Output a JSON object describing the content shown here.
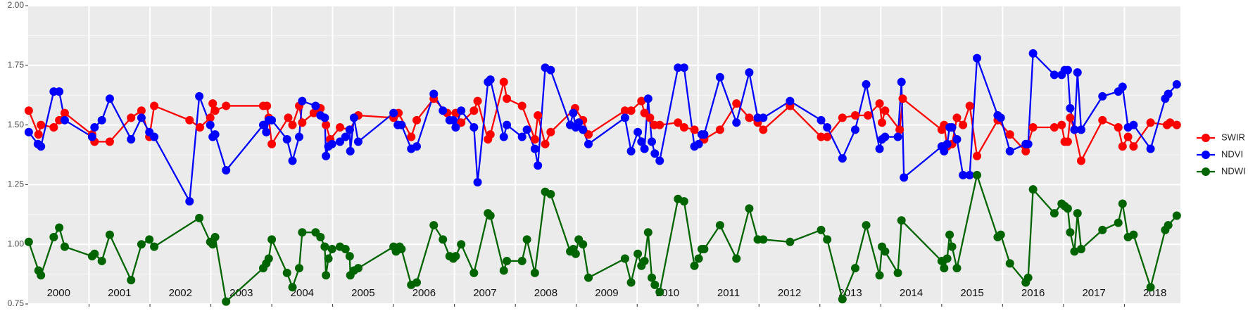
{
  "chart_data": {
    "type": "line",
    "xlim": [
      2000,
      2018.92
    ],
    "xticks": [
      2001,
      2002,
      2003,
      2004,
      2005,
      2006,
      2007,
      2008,
      2009,
      2010,
      2011,
      2012,
      2013,
      2014,
      2015,
      2016,
      2017,
      2018
    ],
    "ylim": [
      0.75,
      2.0
    ],
    "yticks": [
      {
        "value": 0.75,
        "label": "0.75"
      },
      {
        "value": 1.0,
        "label": "1.00"
      },
      {
        "value": 1.25,
        "label": "1.25"
      },
      {
        "value": 1.5,
        "label": "1.50"
      },
      {
        "value": 1.75,
        "label": "1.75"
      },
      {
        "value": 2.0,
        "label": "2.00"
      }
    ],
    "y_minor_ticks": [
      0.875,
      1.125,
      1.375,
      1.625,
      1.875
    ],
    "grid": true,
    "legend": "right",
    "year_labels": [
      {
        "text": "2000",
        "x": 2000.5
      },
      {
        "text": "2001",
        "x": 2001.5
      },
      {
        "text": "2002",
        "x": 2002.5
      },
      {
        "text": "2003",
        "x": 2003.5
      },
      {
        "text": "2004",
        "x": 2004.5
      },
      {
        "text": "2005",
        "x": 2005.5
      },
      {
        "text": "2006",
        "x": 2006.5
      },
      {
        "text": "2007",
        "x": 2007.5
      },
      {
        "text": "2008",
        "x": 2008.5
      },
      {
        "text": "2009",
        "x": 2009.5
      },
      {
        "text": "2010",
        "x": 2010.5
      },
      {
        "text": "2011",
        "x": 2011.5
      },
      {
        "text": "2012",
        "x": 2012.5
      },
      {
        "text": "2013",
        "x": 2013.5
      },
      {
        "text": "2014",
        "x": 2014.5
      },
      {
        "text": "2015",
        "x": 2015.5
      },
      {
        "text": "2016",
        "x": 2016.5
      },
      {
        "text": "2017",
        "x": 2017.5
      },
      {
        "text": "2018",
        "x": 2018.5
      }
    ],
    "series": [
      {
        "name": "SWIR",
        "color": "#ff0000",
        "x": [
          2000.01,
          2000.17,
          2000.21,
          2000.42,
          2000.51,
          2000.6,
          2001.05,
          2001.09,
          2001.34,
          2001.69,
          2001.86,
          2001.99,
          2002.07,
          2002.65,
          2002.82,
          2002.99,
          2003.03,
          2003.07,
          2003.25,
          2003.86,
          2003.92,
          2003.95,
          2004.0,
          2004.27,
          2004.34,
          2004.45,
          2004.5,
          2004.69,
          2004.8,
          2004.89,
          2004.96,
          2005.12,
          2005.28,
          2005.42,
          2006.0,
          2006.08,
          2006.29,
          2006.38,
          2006.66,
          2006.88,
          2007.02,
          2007.11,
          2007.32,
          2007.38,
          2007.55,
          2007.59,
          2007.81,
          2007.86,
          2008.11,
          2008.32,
          2008.37,
          2008.49,
          2008.58,
          2008.98,
          2009.11,
          2009.2,
          2009.8,
          2009.9,
          2010.07,
          2010.12,
          2010.21,
          2010.28,
          2010.37,
          2010.67,
          2010.77,
          2010.94,
          2011.1,
          2011.36,
          2011.63,
          2011.84,
          2011.98,
          2012.07,
          2012.51,
          2013.02,
          2013.12,
          2013.37,
          2013.58,
          2013.79,
          2013.98,
          2014.02,
          2014.07,
          2014.31,
          2014.36,
          2015.0,
          2015.04,
          2015.09,
          2015.17,
          2015.25,
          2015.35,
          2015.46,
          2015.58,
          2015.92,
          2016.12,
          2016.38,
          2016.5,
          2016.85,
          2016.97,
          2017.02,
          2017.07,
          2017.11,
          2017.18,
          2017.29,
          2017.64,
          2017.9,
          2017.97,
          2018.06,
          2018.15,
          2018.43,
          2018.7,
          2018.75,
          2018.86
        ],
        "values": [
          1.56,
          1.46,
          1.5,
          1.49,
          1.52,
          1.55,
          1.46,
          1.43,
          1.43,
          1.53,
          1.56,
          1.45,
          1.58,
          1.52,
          1.49,
          1.53,
          1.59,
          1.56,
          1.58,
          1.58,
          1.58,
          1.53,
          1.42,
          1.53,
          1.5,
          1.58,
          1.51,
          1.55,
          1.57,
          1.5,
          1.44,
          1.49,
          1.48,
          1.54,
          1.53,
          1.55,
          1.45,
          1.52,
          1.61,
          1.55,
          1.55,
          1.51,
          1.56,
          1.6,
          1.44,
          1.46,
          1.68,
          1.61,
          1.58,
          1.44,
          1.54,
          1.42,
          1.47,
          1.57,
          1.52,
          1.46,
          1.56,
          1.56,
          1.6,
          1.55,
          1.53,
          1.5,
          1.5,
          1.51,
          1.49,
          1.48,
          1.44,
          1.48,
          1.59,
          1.53,
          1.51,
          1.48,
          1.58,
          1.45,
          1.45,
          1.53,
          1.54,
          1.54,
          1.59,
          1.51,
          1.56,
          1.48,
          1.61,
          1.48,
          1.5,
          1.41,
          1.42,
          1.53,
          1.5,
          1.58,
          1.37,
          1.52,
          1.46,
          1.39,
          1.49,
          1.49,
          1.5,
          1.43,
          1.43,
          1.53,
          1.48,
          1.35,
          1.52,
          1.49,
          1.41,
          1.45,
          1.41,
          1.51,
          1.5,
          1.51,
          1.5
        ]
      },
      {
        "name": "NDVI",
        "color": "#0000ff",
        "x": [
          2000.01,
          2000.16,
          2000.21,
          2000.42,
          2000.51,
          2000.6,
          2001.05,
          2001.09,
          2001.21,
          2001.34,
          2001.69,
          2001.86,
          2001.99,
          2002.07,
          2002.65,
          2002.81,
          2002.99,
          2003.03,
          2003.07,
          2003.25,
          2003.86,
          2003.91,
          2003.95,
          2004.0,
          2004.25,
          2004.34,
          2004.45,
          2004.5,
          2004.72,
          2004.8,
          2004.87,
          2004.89,
          2004.93,
          2004.99,
          2005.12,
          2005.21,
          2005.28,
          2005.29,
          2005.35,
          2005.42,
          2006.0,
          2006.07,
          2006.13,
          2006.29,
          2006.38,
          2006.66,
          2006.81,
          2006.92,
          2006.98,
          2007.02,
          2007.11,
          2007.32,
          2007.38,
          2007.55,
          2007.59,
          2007.81,
          2007.86,
          2008.11,
          2008.19,
          2008.32,
          2008.37,
          2008.49,
          2008.58,
          2008.9,
          2008.95,
          2008.99,
          2009.04,
          2009.11,
          2009.2,
          2009.8,
          2009.9,
          2010.01,
          2010.07,
          2010.12,
          2010.18,
          2010.24,
          2010.29,
          2010.37,
          2010.67,
          2010.77,
          2010.94,
          2011.01,
          2011.06,
          2011.1,
          2011.36,
          2011.63,
          2011.84,
          2011.98,
          2012.07,
          2012.51,
          2013.02,
          2013.12,
          2013.37,
          2013.58,
          2013.76,
          2013.98,
          2014.02,
          2014.07,
          2014.28,
          2014.34,
          2014.38,
          2015.0,
          2015.04,
          2015.09,
          2015.13,
          2015.17,
          2015.25,
          2015.35,
          2015.46,
          2015.58,
          2015.92,
          2015.97,
          2016.12,
          2016.38,
          2016.42,
          2016.5,
          2016.85,
          2016.97,
          2017.02,
          2017.07,
          2017.11,
          2017.18,
          2017.23,
          2017.29,
          2017.64,
          2017.9,
          2017.97,
          2018.06,
          2018.15,
          2018.43,
          2018.67,
          2018.72,
          2018.86
        ],
        "values": [
          1.47,
          1.42,
          1.41,
          1.64,
          1.64,
          1.52,
          1.45,
          1.49,
          1.52,
          1.61,
          1.44,
          1.53,
          1.47,
          1.45,
          1.18,
          1.62,
          1.5,
          1.45,
          1.46,
          1.31,
          1.5,
          1.47,
          1.52,
          1.52,
          1.44,
          1.35,
          1.45,
          1.6,
          1.58,
          1.54,
          1.53,
          1.37,
          1.41,
          1.42,
          1.43,
          1.45,
          1.48,
          1.39,
          1.53,
          1.43,
          1.55,
          1.5,
          1.5,
          1.4,
          1.41,
          1.63,
          1.56,
          1.52,
          1.52,
          1.49,
          1.56,
          1.49,
          1.26,
          1.68,
          1.69,
          1.45,
          1.5,
          1.45,
          1.48,
          1.4,
          1.33,
          1.74,
          1.73,
          1.5,
          1.55,
          1.49,
          1.51,
          1.48,
          1.42,
          1.53,
          1.39,
          1.47,
          1.43,
          1.4,
          1.61,
          1.43,
          1.38,
          1.35,
          1.74,
          1.74,
          1.41,
          1.42,
          1.46,
          1.46,
          1.7,
          1.51,
          1.72,
          1.53,
          1.53,
          1.6,
          1.52,
          1.49,
          1.36,
          1.48,
          1.67,
          1.4,
          1.44,
          1.45,
          1.45,
          1.68,
          1.28,
          1.41,
          1.39,
          1.42,
          1.49,
          1.49,
          1.44,
          1.29,
          1.29,
          1.78,
          1.54,
          1.53,
          1.39,
          1.42,
          1.42,
          1.8,
          1.71,
          1.71,
          1.73,
          1.73,
          1.57,
          1.48,
          1.72,
          1.48,
          1.62,
          1.64,
          1.66,
          1.49,
          1.5,
          1.4,
          1.61,
          1.63,
          1.67
        ]
      },
      {
        "name": "NDWI",
        "color": "#006400",
        "x": [
          2000.01,
          2000.17,
          2000.21,
          2000.42,
          2000.51,
          2000.6,
          2001.05,
          2001.09,
          2001.21,
          2001.34,
          2001.69,
          2001.86,
          2001.99,
          2002.07,
          2002.81,
          2002.99,
          2003.03,
          2003.07,
          2003.25,
          2003.86,
          2003.91,
          2003.95,
          2004.0,
          2004.25,
          2004.34,
          2004.45,
          2004.5,
          2004.72,
          2004.8,
          2004.87,
          2004.89,
          2004.93,
          2004.99,
          2005.12,
          2005.21,
          2005.28,
          2005.29,
          2005.35,
          2005.42,
          2006.0,
          2006.04,
          2006.1,
          2006.13,
          2006.29,
          2006.38,
          2006.66,
          2006.81,
          2006.92,
          2006.98,
          2007.02,
          2007.11,
          2007.32,
          2007.55,
          2007.59,
          2007.81,
          2007.86,
          2008.11,
          2008.19,
          2008.32,
          2008.49,
          2008.58,
          2008.9,
          2008.95,
          2008.99,
          2009.04,
          2009.11,
          2009.2,
          2009.8,
          2009.9,
          2010.01,
          2010.07,
          2010.12,
          2010.18,
          2010.24,
          2010.29,
          2010.37,
          2010.67,
          2010.77,
          2010.94,
          2011.01,
          2011.06,
          2011.1,
          2011.36,
          2011.63,
          2011.84,
          2011.98,
          2012.07,
          2012.51,
          2013.02,
          2013.12,
          2013.37,
          2013.58,
          2013.76,
          2013.98,
          2014.02,
          2014.07,
          2014.28,
          2014.34,
          2015.0,
          2015.04,
          2015.09,
          2015.13,
          2015.17,
          2015.25,
          2015.58,
          2015.92,
          2015.97,
          2016.12,
          2016.38,
          2016.42,
          2016.5,
          2016.85,
          2016.97,
          2017.02,
          2017.07,
          2017.11,
          2017.18,
          2017.23,
          2017.29,
          2017.64,
          2017.9,
          2017.97,
          2018.06,
          2018.15,
          2018.43,
          2018.67,
          2018.72,
          2018.86
        ],
        "values": [
          1.01,
          0.89,
          0.87,
          1.03,
          1.07,
          0.99,
          0.95,
          0.96,
          0.93,
          1.04,
          0.85,
          1.0,
          1.02,
          0.99,
          1.11,
          1.01,
          1.0,
          1.03,
          0.76,
          0.9,
          0.92,
          0.94,
          1.02,
          0.88,
          0.82,
          0.9,
          1.05,
          1.05,
          1.03,
          0.99,
          0.87,
          0.94,
          0.98,
          0.99,
          0.98,
          0.95,
          0.87,
          0.89,
          0.9,
          0.99,
          0.97,
          0.99,
          0.98,
          0.83,
          0.84,
          1.08,
          1.02,
          0.95,
          0.94,
          0.95,
          1.0,
          0.88,
          1.13,
          1.12,
          0.89,
          0.93,
          0.93,
          1.02,
          0.88,
          1.22,
          1.21,
          0.97,
          0.98,
          0.96,
          1.02,
          1.0,
          0.86,
          0.94,
          0.84,
          0.96,
          0.91,
          0.93,
          1.05,
          0.86,
          0.83,
          0.8,
          1.19,
          1.18,
          0.91,
          0.94,
          0.98,
          0.98,
          1.08,
          0.94,
          1.15,
          1.02,
          1.02,
          1.01,
          1.06,
          1.02,
          0.77,
          0.9,
          1.08,
          0.87,
          0.99,
          0.97,
          0.88,
          1.1,
          0.93,
          0.9,
          0.94,
          1.04,
          0.99,
          0.9,
          1.29,
          1.03,
          1.04,
          0.92,
          0.84,
          0.86,
          1.23,
          1.13,
          1.17,
          1.16,
          1.15,
          1.05,
          0.97,
          1.13,
          0.98,
          1.06,
          1.09,
          1.17,
          1.03,
          1.04,
          0.82,
          1.06,
          1.08,
          1.12
        ]
      }
    ]
  }
}
